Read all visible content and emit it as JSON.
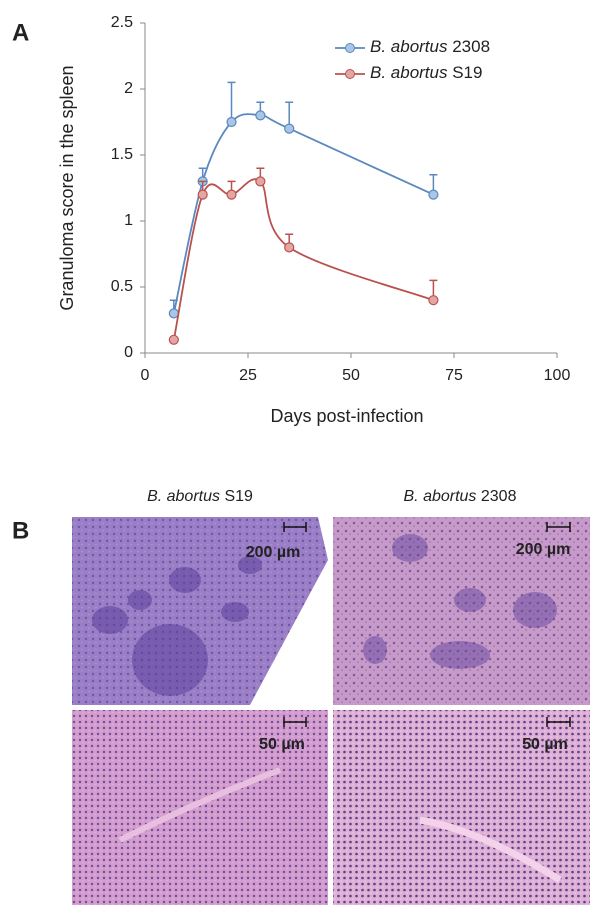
{
  "chart_data": {
    "type": "line",
    "x": [
      7,
      14,
      21,
      28,
      35,
      70
    ],
    "series": [
      {
        "name": "B. abortus 2308",
        "color": "#5a89bf",
        "marker_fill": "#a9c6e6",
        "values": [
          0.3,
          1.3,
          1.75,
          1.8,
          1.7,
          1.2
        ],
        "errors": [
          0.1,
          0.1,
          0.3,
          0.1,
          0.2,
          0.15
        ]
      },
      {
        "name": "B. abortus S19",
        "color": "#b9524f",
        "marker_fill": "#e3a6a4",
        "values": [
          0.1,
          1.2,
          1.2,
          1.3,
          0.8,
          0.4
        ],
        "errors": [
          0,
          0.1,
          0.1,
          0.1,
          0.1,
          0.15
        ]
      }
    ],
    "xlabel": "Days post-infection",
    "ylabel": "Granuloma score in the spleen",
    "xlim": [
      0,
      100
    ],
    "xticks": [
      0,
      25,
      50,
      75,
      100
    ],
    "ylim": [
      0,
      2.5
    ],
    "yticks": [
      0,
      0.5,
      1,
      1.5,
      2,
      2.5
    ],
    "legend": "top",
    "grid": false
  },
  "panel_labels": [
    "A",
    "B"
  ],
  "micrographs": {
    "columns": [
      "B. abortus S19",
      "B. abortus 2308"
    ],
    "scale_bars": [
      "200 µm",
      "50 µm"
    ]
  }
}
